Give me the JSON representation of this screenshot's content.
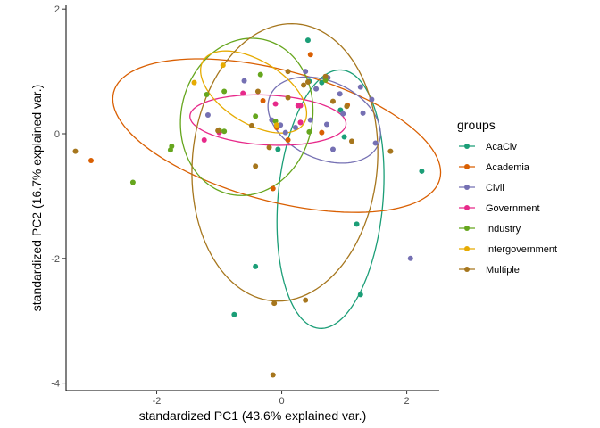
{
  "chart_data": {
    "type": "scatter",
    "title": "",
    "xlabel": "standardized PC1 (43.6% explained var.)",
    "ylabel": "standardized PC2 (16.7% explained var.)",
    "xlim": [
      -3.45,
      2.52
    ],
    "ylim": [
      -4.12,
      2.06
    ],
    "xticks": [
      -2,
      0,
      2
    ],
    "yticks": [
      -4,
      -2,
      0,
      2
    ],
    "xtick_labels": [
      "-2",
      "0",
      "2"
    ],
    "ytick_labels": [
      "-4",
      "-2",
      "0",
      "2"
    ],
    "grid": false,
    "legend_title": "groups",
    "legend_position": "right",
    "series": [
      {
        "name": "AcaCiv",
        "color": "#1B9E77",
        "ellipse": {
          "cx": 0.78,
          "cy": -1.05,
          "rx": 0.84,
          "ry": 2.08,
          "angle": -5
        },
        "points": [
          [
            0.42,
            1.5
          ],
          [
            2.24,
            -0.6
          ],
          [
            1.26,
            -2.58
          ],
          [
            1.2,
            -1.45
          ],
          [
            -0.76,
            -2.9
          ],
          [
            -0.42,
            -2.13
          ],
          [
            -0.06,
            -0.25
          ],
          [
            0.64,
            0.82
          ],
          [
            0.94,
            0.38
          ],
          [
            1.0,
            -0.05
          ],
          [
            0.44,
            0.84
          ]
        ]
      },
      {
        "name": "Academia",
        "color": "#D95F02",
        "ellipse": {
          "cx": -0.08,
          "cy": -0.03,
          "rx": 2.7,
          "ry": 1.05,
          "angle": -15
        },
        "points": [
          [
            -3.05,
            -0.43
          ],
          [
            0.46,
            1.27
          ],
          [
            -0.14,
            -0.88
          ],
          [
            0.64,
            0.02
          ],
          [
            -0.3,
            0.53
          ],
          [
            0.1,
            -0.1
          ],
          [
            1.05,
            0.46
          ],
          [
            -0.08,
            0.1
          ],
          [
            0.3,
            0.18
          ]
        ]
      },
      {
        "name": "Civil",
        "color": "#7570B3",
        "ellipse": {
          "cx": 0.68,
          "cy": 0.22,
          "rx": 0.95,
          "ry": 0.62,
          "angle": -25
        },
        "points": [
          [
            0.38,
            1.0
          ],
          [
            0.74,
            0.9
          ],
          [
            0.55,
            0.72
          ],
          [
            0.93,
            0.64
          ],
          [
            1.26,
            0.75
          ],
          [
            1.44,
            0.55
          ],
          [
            0.46,
            0.22
          ],
          [
            0.72,
            0.15
          ],
          [
            0.98,
            0.32
          ],
          [
            1.3,
            0.33
          ],
          [
            0.22,
            0.1
          ],
          [
            0.06,
            0.02
          ],
          [
            -0.16,
            0.22
          ],
          [
            -0.02,
            0.14
          ],
          [
            1.5,
            -0.15
          ],
          [
            0.82,
            -0.25
          ],
          [
            2.06,
            -2.0
          ],
          [
            -1.18,
            0.3
          ],
          [
            -0.6,
            0.85
          ]
        ]
      },
      {
        "name": "Government",
        "color": "#E7298A",
        "ellipse": {
          "cx": -0.22,
          "cy": 0.22,
          "rx": 1.25,
          "ry": 0.4,
          "angle": -3
        },
        "points": [
          [
            -1.24,
            -0.1
          ],
          [
            -1.0,
            0.02
          ],
          [
            -0.62,
            0.65
          ],
          [
            0.3,
            0.45
          ],
          [
            -0.1,
            0.48
          ],
          [
            0.3,
            0.18
          ],
          [
            0.26,
            0.45
          ]
        ]
      },
      {
        "name": "Industry",
        "color": "#66A61E",
        "ellipse": {
          "cx": -0.56,
          "cy": 0.27,
          "rx": 1.05,
          "ry": 1.27,
          "angle": -12
        },
        "points": [
          [
            -2.38,
            -0.78
          ],
          [
            -1.76,
            -0.2
          ],
          [
            -1.78,
            -0.26
          ],
          [
            -1.2,
            0.63
          ],
          [
            -0.92,
            0.68
          ],
          [
            -1.0,
            0.06
          ],
          [
            -0.92,
            0.04
          ],
          [
            -0.34,
            0.95
          ],
          [
            -0.1,
            0.2
          ],
          [
            0.44,
            0.03
          ],
          [
            0.7,
            0.86
          ],
          [
            -0.42,
            0.28
          ]
        ]
      },
      {
        "name": "Intergovernment",
        "color": "#E6AB02",
        "ellipse": {
          "cx": -0.45,
          "cy": 0.67,
          "rx": 0.95,
          "ry": 0.5,
          "angle": -32
        },
        "points": [
          [
            -1.4,
            0.82
          ],
          [
            -0.94,
            1.1
          ],
          [
            -0.08,
            0.14
          ]
        ]
      },
      {
        "name": "Multiple",
        "color": "#A6761D",
        "ellipse": {
          "cx": 0.05,
          "cy": -0.46,
          "rx": 1.48,
          "ry": 2.23,
          "angle": -5
        },
        "points": [
          [
            -3.3,
            -0.28
          ],
          [
            -1.02,
            0.05
          ],
          [
            -0.48,
            0.13
          ],
          [
            -0.38,
            0.68
          ],
          [
            0.1,
            1.0
          ],
          [
            0.1,
            0.58
          ],
          [
            0.42,
            0.83
          ],
          [
            0.35,
            0.78
          ],
          [
            0.82,
            0.52
          ],
          [
            1.04,
            0.44
          ],
          [
            0.7,
            0.92
          ],
          [
            1.74,
            -0.28
          ],
          [
            1.12,
            -0.12
          ],
          [
            -0.42,
            -0.52
          ],
          [
            -0.2,
            -0.22
          ],
          [
            -0.12,
            -2.72
          ],
          [
            0.38,
            -2.67
          ],
          [
            -0.14,
            -3.87
          ]
        ]
      }
    ]
  }
}
